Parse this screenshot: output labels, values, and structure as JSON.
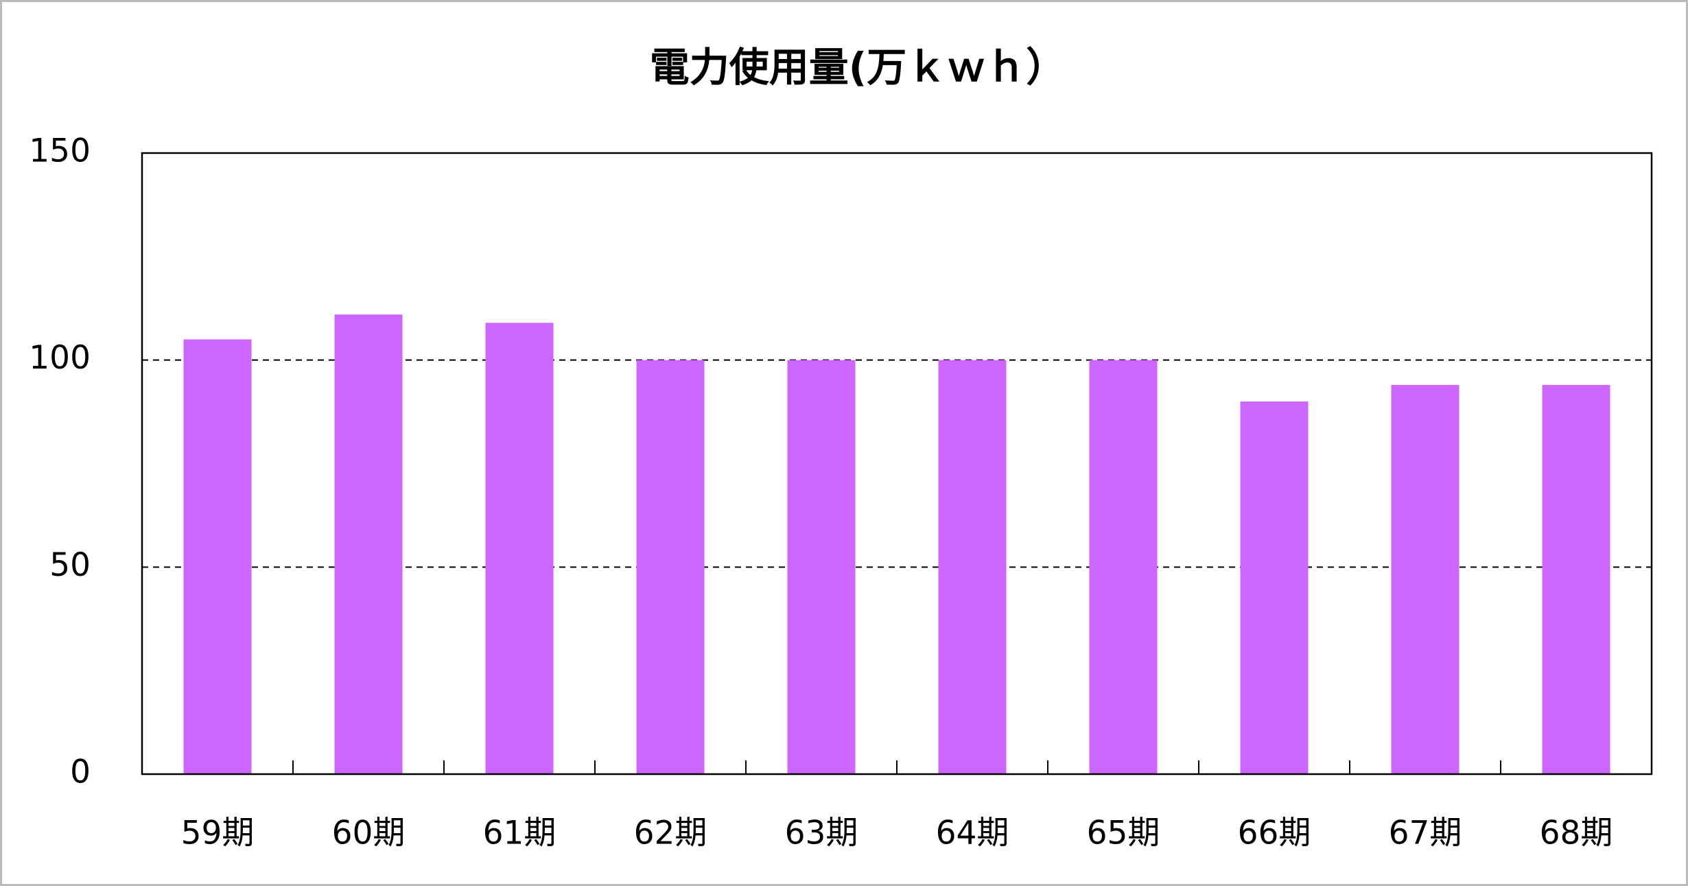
{
  "chart_data": {
    "type": "bar",
    "title": "電力使用量(万ｋｗｈ）",
    "categories": [
      "59期",
      "60期",
      "61期",
      "62期",
      "63期",
      "64期",
      "65期",
      "66期",
      "67期",
      "68期"
    ],
    "values": [
      105,
      111,
      109,
      100,
      100,
      100,
      100,
      90,
      94,
      94
    ],
    "color": "#cc66ff",
    "ylim": [
      0,
      150
    ],
    "yticks": [
      0,
      50,
      100,
      150
    ],
    "grid": true
  }
}
